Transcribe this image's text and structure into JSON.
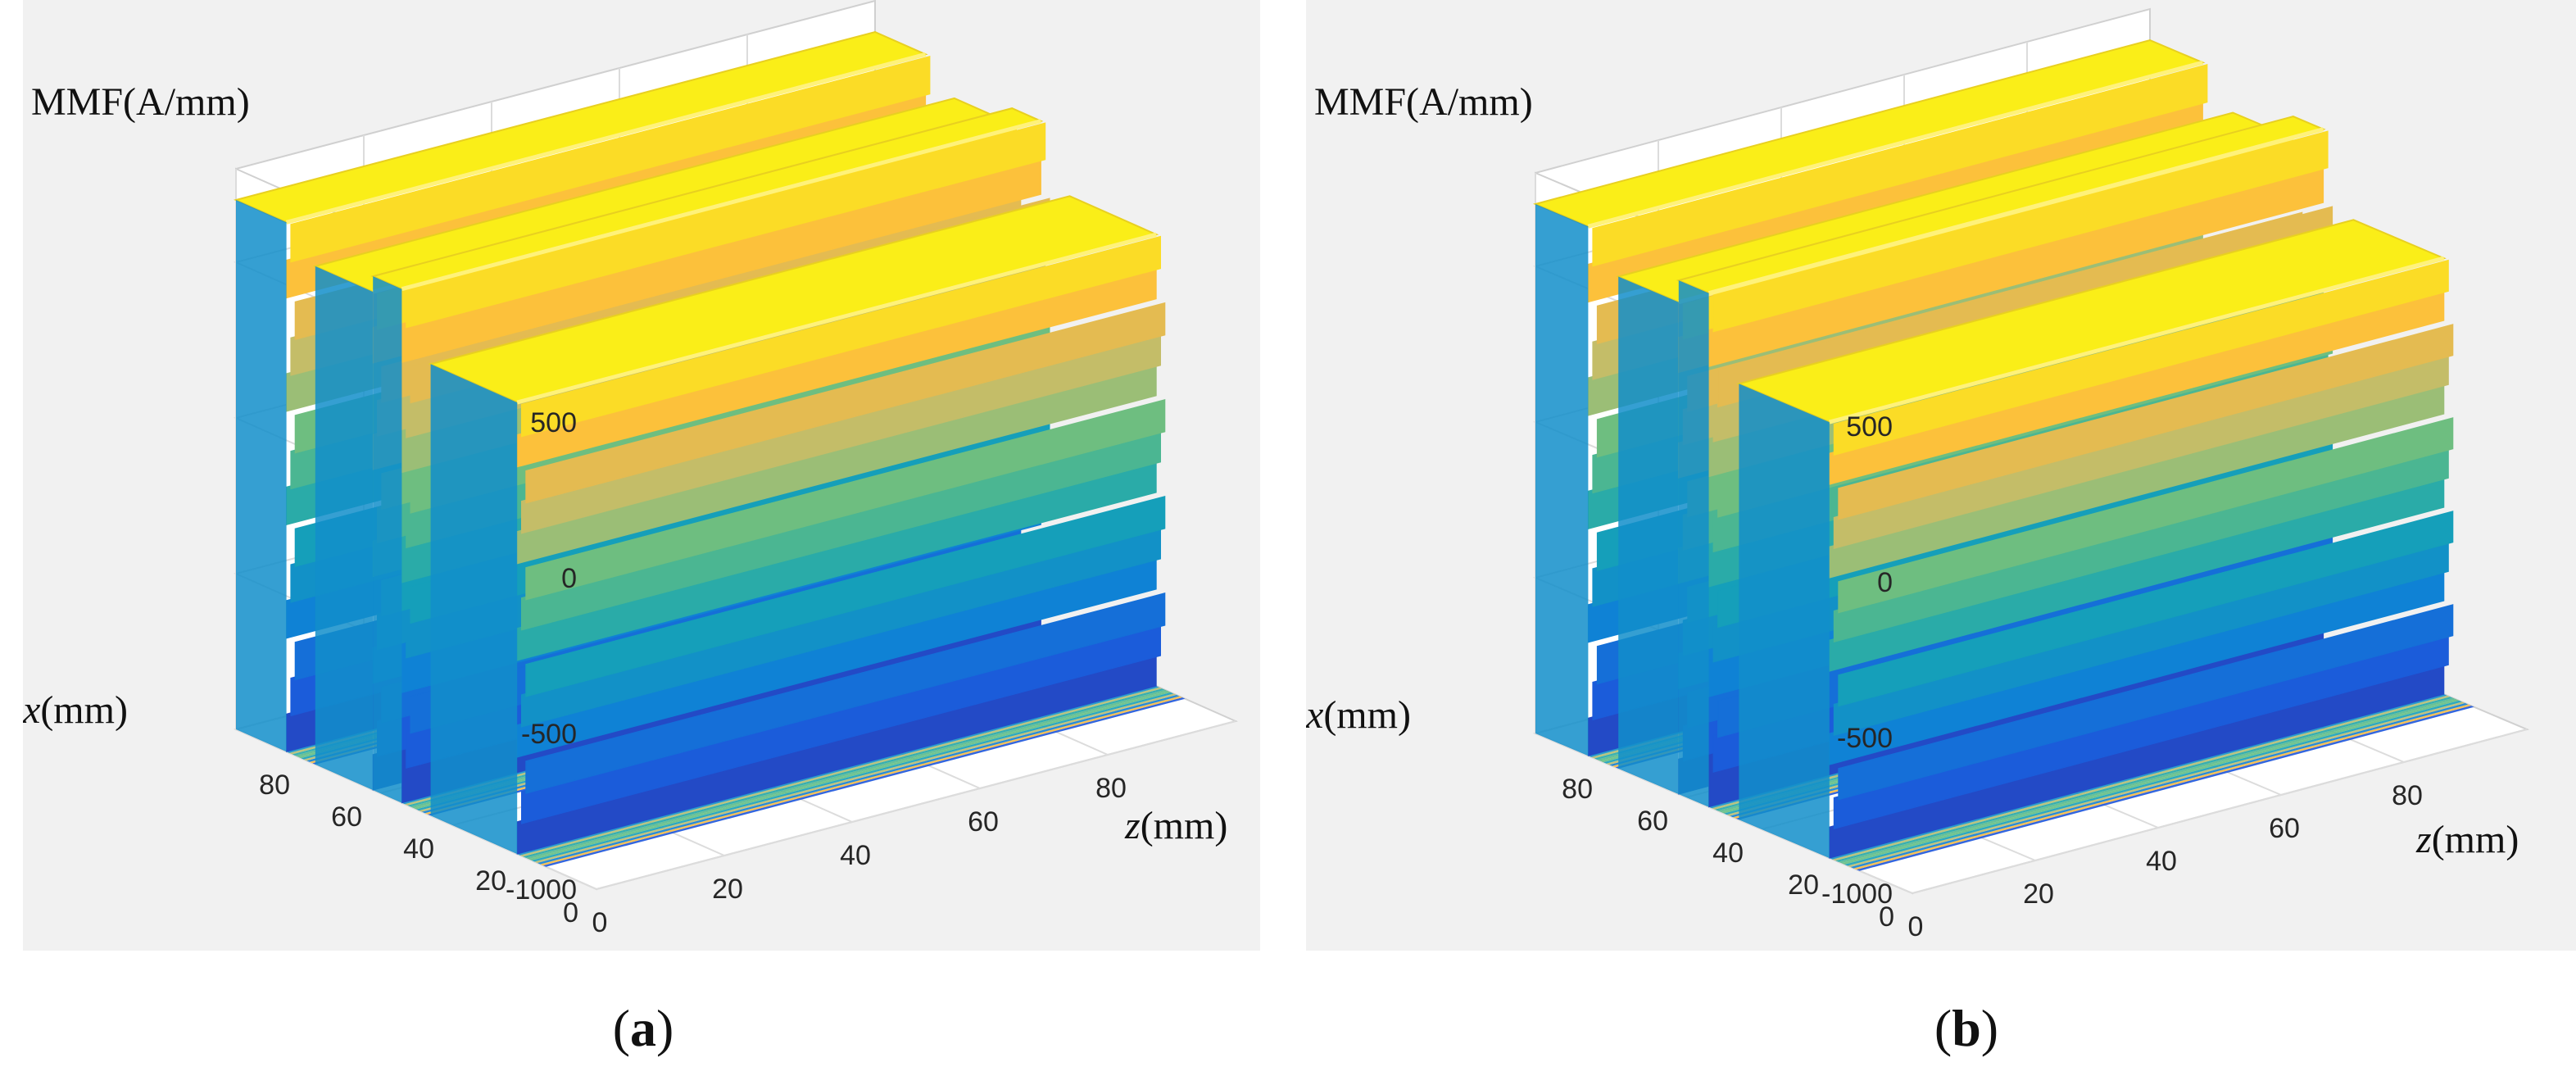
{
  "chart_data": [
    {
      "type": "surface3d",
      "panel": "a",
      "caption_letter": "a",
      "zlabel": "MMF(A/mm)",
      "xlabel_var": "x",
      "xlabel_unit": "(mm)",
      "ylabel_var": "z",
      "ylabel_unit": "(mm)",
      "zlim": [
        -1000,
        800
      ],
      "z_ticks": [
        "500",
        "0",
        "-500",
        "-1000"
      ],
      "z_tick_values": [
        500,
        0,
        -500,
        -1000
      ],
      "x_ticks": [
        "0",
        "20",
        "40",
        "60",
        "80"
      ],
      "x_tick_values": [
        0,
        20,
        40,
        60,
        80
      ],
      "y_ticks": [
        "0",
        "20",
        "40",
        "60",
        "80"
      ],
      "y_tick_values": [
        0,
        20,
        40,
        60,
        80
      ],
      "slots_x_mm": [
        [
          78,
          86
        ],
        [
          46,
          54
        ],
        [
          14,
          22
        ]
      ],
      "ridges": [
        {
          "x_range": [
            86,
            100
          ],
          "mmf_max": 700,
          "mmf_min": -1000
        },
        {
          "x_range": [
            62,
            78
          ],
          "mmf_max": 600,
          "mmf_min": -1000
        },
        {
          "x_range": [
            54,
            62
          ],
          "mmf_max": 650,
          "mmf_min": -1000
        },
        {
          "x_range": [
            22,
            46
          ],
          "mmf_max": 450,
          "mmf_min": -1000
        }
      ],
      "grid": true
    },
    {
      "type": "surface3d",
      "panel": "b",
      "caption_letter": "b",
      "zlabel": "MMF(A/mm)",
      "xlabel_var": "x",
      "xlabel_unit": "(mm)",
      "ylabel_var": "z",
      "ylabel_unit": "(mm)",
      "zlim": [
        -1000,
        800
      ],
      "z_ticks": [
        "500",
        "0",
        "-500",
        "-1000"
      ],
      "z_tick_values": [
        500,
        0,
        -500,
        -1000
      ],
      "x_ticks": [
        "0",
        "20",
        "40",
        "60",
        "80"
      ],
      "x_tick_values": [
        0,
        20,
        40,
        60,
        80
      ],
      "y_ticks": [
        "0",
        "20",
        "40",
        "60",
        "80"
      ],
      "y_tick_values": [
        0,
        20,
        40,
        60,
        80
      ],
      "slots_x_mm": [
        [
          78,
          86
        ],
        [
          46,
          54
        ],
        [
          14,
          22
        ]
      ],
      "ridges": [
        {
          "x_range": [
            86,
            100
          ],
          "mmf_max": 700,
          "mmf_min": -1000
        },
        {
          "x_range": [
            62,
            78
          ],
          "mmf_max": 580,
          "mmf_min": -1000
        },
        {
          "x_range": [
            54,
            62
          ],
          "mmf_max": 650,
          "mmf_min": -1000
        },
        {
          "x_range": [
            22,
            46
          ],
          "mmf_max": 400,
          "mmf_min": -1000
        }
      ],
      "grid": true
    }
  ]
}
